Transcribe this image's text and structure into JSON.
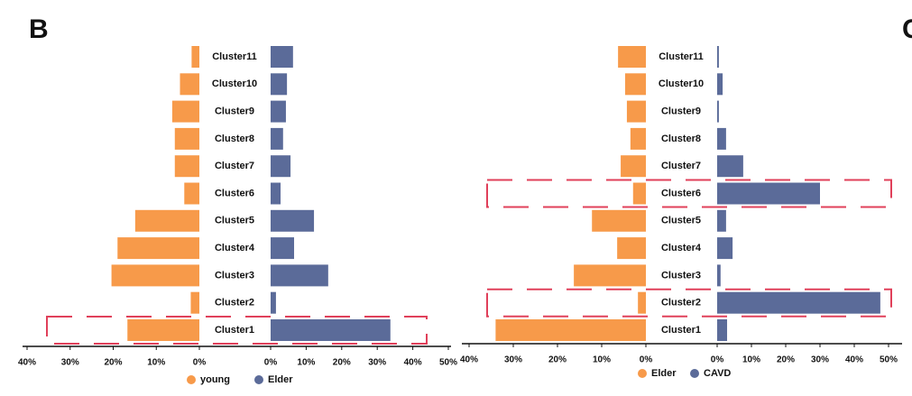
{
  "panel_labels": [
    "B",
    "C"
  ],
  "chart_data": [
    {
      "type": "butterfly",
      "categories": [
        "Cluster1",
        "Cluster2",
        "Cluster3",
        "Cluster4",
        "Cluster5",
        "Cluster6",
        "Cluster7",
        "Cluster8",
        "Cluster9",
        "Cluster10",
        "Cluster11"
      ],
      "series": [
        {
          "name": "young",
          "color": "#f79a4a",
          "side": "left",
          "values": [
            16.7,
            2,
            20.4,
            19,
            14.9,
            3.5,
            5.7,
            5.7,
            6.3,
            4.5,
            1.8
          ],
          "xlim": [
            0,
            40
          ],
          "xticks": [
            {
              "value": 40,
              "label": "40%"
            },
            {
              "value": 30,
              "label": "30%"
            },
            {
              "value": 20,
              "label": "20%"
            },
            {
              "value": 10,
              "label": "10%"
            },
            {
              "value": 0,
              "label": "0%"
            }
          ]
        },
        {
          "name": "Elder",
          "color": "#5b6b99",
          "side": "right",
          "values": [
            33.7,
            1.5,
            16.2,
            6.6,
            12.2,
            2.8,
            5.6,
            3.5,
            4.3,
            4.6,
            6.3
          ],
          "xlim": [
            0,
            50
          ],
          "xticks": [
            {
              "value": 0,
              "label": "0%"
            },
            {
              "value": 10,
              "label": "10%"
            },
            {
              "value": 20,
              "label": "20%"
            },
            {
              "value": 30,
              "label": "30%"
            },
            {
              "value": 40,
              "label": "40%"
            },
            {
              "value": 50,
              "label": "50%"
            }
          ]
        }
      ],
      "highlight": [
        0
      ]
    },
    {
      "type": "butterfly",
      "categories": [
        "Cluster1",
        "Cluster2",
        "Cluster3",
        "Cluster4",
        "Cluster5",
        "Cluster6",
        "Cluster7",
        "Cluster8",
        "Cluster9",
        "Cluster10",
        "Cluster11"
      ],
      "series": [
        {
          "name": "Elder",
          "color": "#f79a4a",
          "side": "left",
          "values": [
            34,
            1.8,
            16.3,
            6.5,
            12.2,
            2.9,
            5.7,
            3.5,
            4.3,
            4.7,
            6.3
          ],
          "xlim": [
            0,
            40
          ],
          "xticks": [
            {
              "value": 40,
              "label": "40%"
            },
            {
              "value": 30,
              "label": "30%"
            },
            {
              "value": 20,
              "label": "20%"
            },
            {
              "value": 10,
              "label": "10%"
            },
            {
              "value": 0,
              "label": "0%"
            }
          ]
        },
        {
          "name": "CAVD",
          "color": "#5b6b99",
          "side": "right",
          "values": [
            2.9,
            47.6,
            1,
            4.5,
            2.6,
            30,
            7.6,
            2.6,
            0.5,
            1.6,
            0.5
          ],
          "xlim": [
            0,
            50
          ],
          "xticks": [
            {
              "value": 0,
              "label": "0%"
            },
            {
              "value": 10,
              "label": "10%"
            },
            {
              "value": 20,
              "label": "20%"
            },
            {
              "value": 30,
              "label": "30%"
            },
            {
              "value": 40,
              "label": "40%"
            },
            {
              "value": 50,
              "label": "50%"
            }
          ]
        }
      ],
      "highlight": [
        1,
        5
      ]
    }
  ]
}
